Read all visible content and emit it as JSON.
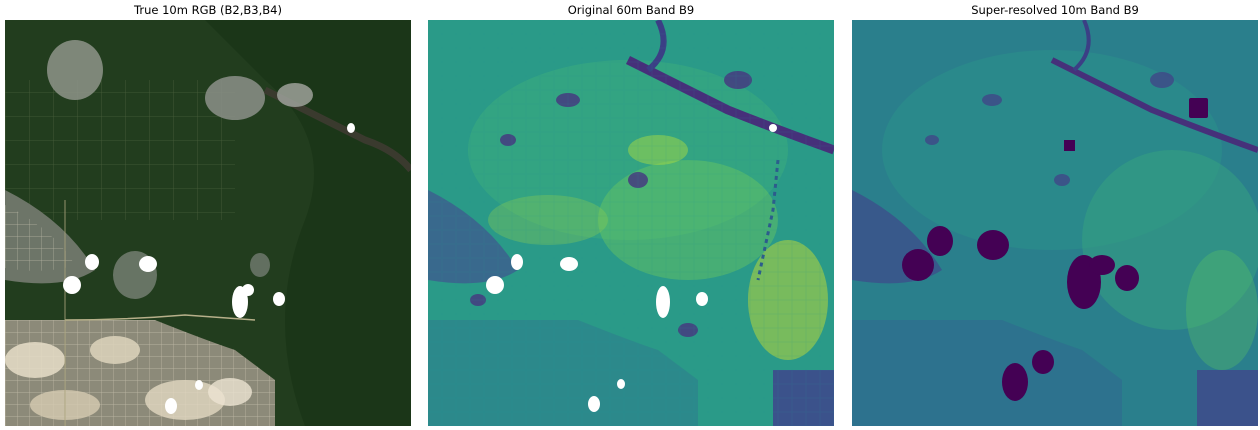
{
  "panels": [
    {
      "title": "True 10m RGB (B2,B3,B4)"
    },
    {
      "title": "Original 60m Band B9"
    },
    {
      "title": "Super-resolved 10m Band B9"
    }
  ],
  "colors": {
    "forest_dark": "#1b3218",
    "forest_mid": "#2c4b26",
    "bare_soil": "#c9bfa6",
    "viridis_low": "#440154",
    "viridis_blue": "#3b528b",
    "viridis_teal": "#21908c",
    "viridis_green": "#5ec962",
    "viridis_high": "#fde725",
    "masked": "#ffffff"
  }
}
